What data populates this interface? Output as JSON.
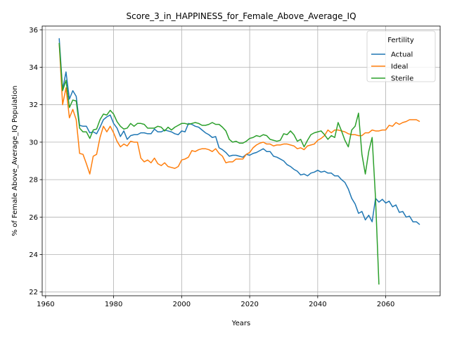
{
  "chart_data": {
    "type": "line",
    "title": "Score_3_in_HAPPINESS_for_Female_Above_Average_IQ",
    "xlabel": "Years",
    "ylabel": "% of Female Above_Average_IQ Population",
    "xlim": [
      1959,
      2076
    ],
    "ylim": [
      21.8,
      36.2
    ],
    "xticks": [
      1960,
      1980,
      2000,
      2020,
      2040,
      2060
    ],
    "yticks": [
      22,
      24,
      26,
      28,
      30,
      32,
      34,
      36
    ],
    "grid": true,
    "legend": {
      "title": "Fertility",
      "placement": "top-right"
    },
    "series": [
      {
        "name": "Actual",
        "color": "#1f77b4",
        "x": [
          1964,
          1965,
          1966,
          1967,
          1968,
          1969,
          1970,
          1971,
          1972,
          1973,
          1974,
          1975,
          1976,
          1977,
          1978,
          1979,
          1980,
          1981,
          1982,
          1983,
          1984,
          1985,
          1986,
          1987,
          1988,
          1989,
          1990,
          1991,
          1992,
          1993,
          1994,
          1995,
          1996,
          1997,
          1998,
          1999,
          2000,
          2001,
          2002,
          2003,
          2004,
          2005,
          2006,
          2007,
          2008,
          2009,
          2010,
          2011,
          2012,
          2013,
          2014,
          2015,
          2016,
          2017,
          2018,
          2019,
          2020,
          2021,
          2022,
          2023,
          2024,
          2025,
          2026,
          2027,
          2028,
          2029,
          2030,
          2031,
          2032,
          2033,
          2034,
          2035,
          2036,
          2037,
          2038,
          2039,
          2040,
          2041,
          2042,
          2043,
          2044,
          2045,
          2046,
          2047,
          2048,
          2049,
          2050,
          2051,
          2052,
          2053,
          2054,
          2055,
          2056,
          2057,
          2058,
          2059,
          2060,
          2061,
          2062,
          2063,
          2064,
          2065,
          2066,
          2067,
          2068,
          2069,
          2070
        ],
        "values": [
          35.55,
          32.8,
          33.75,
          32.3,
          32.75,
          32.45,
          30.9,
          30.85,
          30.85,
          30.5,
          30.55,
          30.45,
          30.8,
          31.2,
          31.35,
          31.45,
          31.0,
          30.75,
          30.3,
          30.6,
          30.15,
          30.35,
          30.4,
          30.4,
          30.5,
          30.5,
          30.45,
          30.45,
          30.7,
          30.55,
          30.55,
          30.65,
          30.6,
          30.55,
          30.45,
          30.4,
          30.6,
          30.55,
          31.0,
          30.95,
          30.85,
          30.8,
          30.65,
          30.5,
          30.4,
          30.25,
          30.3,
          29.7,
          29.6,
          29.45,
          29.25,
          29.3,
          29.3,
          29.25,
          29.2,
          29.35,
          29.3,
          29.4,
          29.45,
          29.55,
          29.65,
          29.5,
          29.5,
          29.25,
          29.2,
          29.1,
          29.0,
          28.8,
          28.7,
          28.55,
          28.45,
          28.25,
          28.3,
          28.2,
          28.35,
          28.4,
          28.5,
          28.4,
          28.45,
          28.35,
          28.35,
          28.2,
          28.2,
          28.0,
          27.85,
          27.5,
          27.0,
          26.7,
          26.2,
          26.3,
          25.85,
          26.1,
          25.75,
          27.0,
          26.8,
          26.95,
          26.75,
          26.85,
          26.55,
          26.65,
          26.25,
          26.3,
          26.0,
          26.05,
          25.75,
          25.75,
          25.6
        ]
      },
      {
        "name": "Ideal",
        "color": "#ff7f0e",
        "x": [
          1964,
          1965,
          1966,
          1967,
          1968,
          1969,
          1970,
          1971,
          1972,
          1973,
          1974,
          1975,
          1976,
          1977,
          1978,
          1979,
          1980,
          1981,
          1982,
          1983,
          1984,
          1985,
          1986,
          1987,
          1988,
          1989,
          1990,
          1991,
          1992,
          1993,
          1994,
          1995,
          1996,
          1997,
          1998,
          1999,
          2000,
          2001,
          2002,
          2003,
          2004,
          2005,
          2006,
          2007,
          2008,
          2009,
          2010,
          2011,
          2012,
          2013,
          2014,
          2015,
          2016,
          2017,
          2018,
          2019,
          2020,
          2021,
          2022,
          2023,
          2024,
          2025,
          2026,
          2027,
          2028,
          2029,
          2030,
          2031,
          2032,
          2033,
          2034,
          2035,
          2036,
          2037,
          2038,
          2039,
          2040,
          2041,
          2042,
          2043,
          2044,
          2045,
          2046,
          2047,
          2048,
          2049,
          2050,
          2051,
          2052,
          2053,
          2054,
          2055,
          2056,
          2057,
          2058,
          2059,
          2060,
          2061,
          2062,
          2063,
          2064,
          2065,
          2066,
          2067,
          2068,
          2069,
          2070
        ],
        "values": [
          35.3,
          32.0,
          32.9,
          31.3,
          31.75,
          31.2,
          29.4,
          29.35,
          28.85,
          28.3,
          29.25,
          29.35,
          30.25,
          30.85,
          30.55,
          30.85,
          30.5,
          30.05,
          29.75,
          29.9,
          29.8,
          30.05,
          30.0,
          30.0,
          29.15,
          28.95,
          29.05,
          28.9,
          29.15,
          28.85,
          28.75,
          28.9,
          28.7,
          28.65,
          28.6,
          28.7,
          29.05,
          29.1,
          29.2,
          29.55,
          29.5,
          29.6,
          29.65,
          29.65,
          29.6,
          29.5,
          29.65,
          29.4,
          29.25,
          28.9,
          28.95,
          28.95,
          29.1,
          29.1,
          29.1,
          29.35,
          29.45,
          29.7,
          29.85,
          29.95,
          30.0,
          29.9,
          29.9,
          29.8,
          29.85,
          29.85,
          29.9,
          29.9,
          29.85,
          29.8,
          29.65,
          29.7,
          29.6,
          29.8,
          29.85,
          29.9,
          30.1,
          30.2,
          30.35,
          30.65,
          30.5,
          30.65,
          30.65,
          30.6,
          30.55,
          30.45,
          30.4,
          30.4,
          30.35,
          30.35,
          30.5,
          30.5,
          30.65,
          30.6,
          30.6,
          30.65,
          30.65,
          30.9,
          30.85,
          31.05,
          30.95,
          31.05,
          31.1,
          31.2,
          31.2,
          31.2,
          31.1
        ]
      },
      {
        "name": "Sterile",
        "color": "#2ca02c",
        "x": [
          1964,
          1965,
          1966,
          1967,
          1968,
          1969,
          1970,
          1971,
          1972,
          1973,
          1974,
          1975,
          1976,
          1977,
          1978,
          1979,
          1980,
          1981,
          1982,
          1983,
          1984,
          1985,
          1986,
          1987,
          1988,
          1989,
          1990,
          1991,
          1992,
          1993,
          1994,
          1995,
          1996,
          1997,
          1998,
          1999,
          2000,
          2001,
          2002,
          2003,
          2004,
          2005,
          2006,
          2007,
          2008,
          2009,
          2010,
          2011,
          2012,
          2013,
          2014,
          2015,
          2016,
          2017,
          2018,
          2019,
          2020,
          2021,
          2022,
          2023,
          2024,
          2025,
          2026,
          2027,
          2028,
          2029,
          2030,
          2031,
          2032,
          2033,
          2034,
          2035,
          2036,
          2037,
          2038,
          2039,
          2040,
          2041,
          2042,
          2043,
          2044,
          2045,
          2046,
          2047,
          2048,
          2049,
          2050,
          2051,
          2052,
          2053,
          2054,
          2055,
          2056,
          2057,
          2058
        ],
        "values": [
          35.3,
          32.75,
          33.3,
          31.85,
          32.25,
          32.2,
          30.75,
          30.55,
          30.55,
          30.2,
          30.65,
          30.7,
          31.2,
          31.5,
          31.45,
          31.7,
          31.5,
          31.1,
          30.85,
          30.7,
          30.75,
          31.0,
          30.85,
          31.0,
          31.0,
          30.95,
          30.75,
          30.75,
          30.75,
          30.85,
          30.8,
          30.6,
          30.8,
          30.65,
          30.8,
          30.9,
          31.0,
          31.0,
          30.95,
          31.0,
          31.05,
          31.0,
          30.9,
          30.9,
          30.95,
          31.05,
          30.95,
          30.95,
          30.8,
          30.6,
          30.15,
          30.0,
          30.05,
          29.95,
          29.95,
          30.05,
          30.2,
          30.25,
          30.35,
          30.3,
          30.4,
          30.35,
          30.15,
          30.1,
          30.05,
          30.1,
          30.45,
          30.4,
          30.6,
          30.4,
          30.05,
          30.15,
          29.75,
          30.1,
          30.4,
          30.5,
          30.55,
          30.6,
          30.4,
          30.15,
          30.35,
          30.25,
          31.05,
          30.6,
          30.1,
          29.75,
          30.65,
          30.85,
          31.55,
          29.35,
          28.3,
          29.5,
          30.25,
          27.0,
          22.4
        ]
      }
    ]
  }
}
